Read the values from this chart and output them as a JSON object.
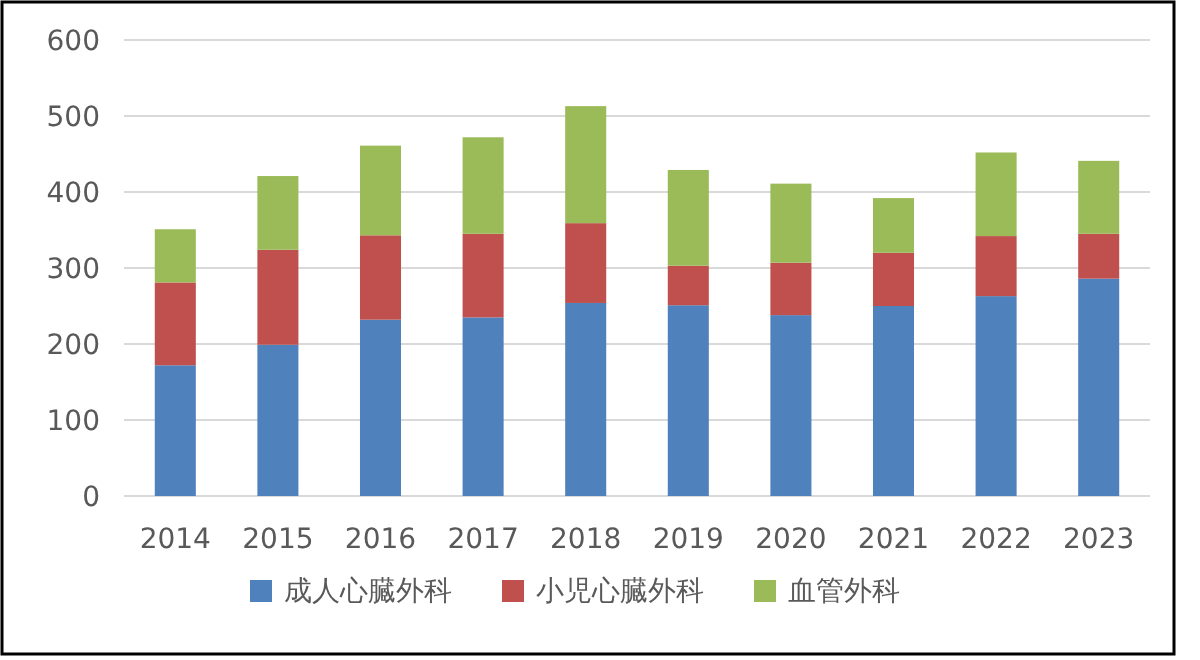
{
  "chart_data": {
    "type": "bar",
    "stacked": true,
    "categories": [
      "2014",
      "2015",
      "2016",
      "2017",
      "2018",
      "2019",
      "2020",
      "2021",
      "2022",
      "2023"
    ],
    "series": [
      {
        "name": "成人心臓外科",
        "color": "#4f81bd",
        "values": [
          172,
          199,
          232,
          235,
          254,
          251,
          238,
          250,
          263,
          286
        ]
      },
      {
        "name": "小児心臓外科",
        "color": "#c0504d",
        "values": [
          109,
          125,
          111,
          110,
          105,
          52,
          69,
          70,
          79,
          59
        ]
      },
      {
        "name": "血管外科",
        "color": "#9bbb59",
        "values": [
          70,
          97,
          118,
          127,
          154,
          126,
          104,
          72,
          110,
          96
        ]
      }
    ],
    "ylim": [
      0,
      600
    ],
    "yticks": [
      0,
      100,
      200,
      300,
      400,
      500,
      600
    ],
    "grid": "y",
    "legend": "bottom"
  }
}
